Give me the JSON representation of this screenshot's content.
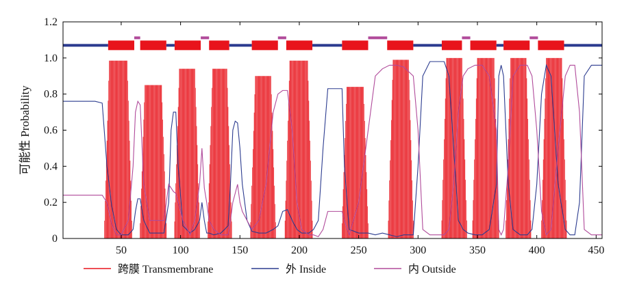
{
  "chart_data": {
    "type": "line",
    "title": "",
    "xlabel": "",
    "ylabel": "可能性 Probability",
    "xlim": [
      1,
      455
    ],
    "ylim": [
      0,
      1.2
    ],
    "x_ticks": [
      50,
      100,
      150,
      200,
      250,
      300,
      350,
      400,
      450
    ],
    "y_ticks": [
      0,
      0.2,
      0.4,
      0.6,
      0.8,
      1.0,
      1.2
    ],
    "grid": false,
    "legend_position": "bottom",
    "legend": [
      {
        "label": "跨膜 Transmembrane",
        "color": "#e8141c"
      },
      {
        "label": "外 Inside",
        "color": "#2b3b8f"
      },
      {
        "label": "内 Outside",
        "color": "#b04a9a"
      }
    ],
    "topology_bar_y": 1.07,
    "topology": [
      {
        "type": "inside",
        "start": 1,
        "end": 39
      },
      {
        "type": "tm",
        "start": 39,
        "end": 61
      },
      {
        "type": "outside",
        "start": 61,
        "end": 66
      },
      {
        "type": "tm",
        "start": 66,
        "end": 88
      },
      {
        "type": "inside",
        "start": 88,
        "end": 95
      },
      {
        "type": "tm",
        "start": 95,
        "end": 117
      },
      {
        "type": "outside",
        "start": 117,
        "end": 124
      },
      {
        "type": "tm",
        "start": 124,
        "end": 141
      },
      {
        "type": "inside",
        "start": 141,
        "end": 160
      },
      {
        "type": "tm",
        "start": 160,
        "end": 182
      },
      {
        "type": "outside",
        "start": 182,
        "end": 189
      },
      {
        "type": "tm",
        "start": 189,
        "end": 211
      },
      {
        "type": "inside",
        "start": 211,
        "end": 236
      },
      {
        "type": "tm",
        "start": 236,
        "end": 258
      },
      {
        "type": "outside",
        "start": 258,
        "end": 274
      },
      {
        "type": "tm",
        "start": 274,
        "end": 296
      },
      {
        "type": "inside",
        "start": 296,
        "end": 320
      },
      {
        "type": "tm",
        "start": 320,
        "end": 337
      },
      {
        "type": "outside",
        "start": 337,
        "end": 344
      },
      {
        "type": "tm",
        "start": 344,
        "end": 366
      },
      {
        "type": "inside",
        "start": 366,
        "end": 372
      },
      {
        "type": "tm",
        "start": 372,
        "end": 394
      },
      {
        "type": "outside",
        "start": 394,
        "end": 401
      },
      {
        "type": "tm",
        "start": 401,
        "end": 423
      },
      {
        "type": "inside",
        "start": 423,
        "end": 455
      }
    ],
    "tm_segments": [
      {
        "start": 36,
        "end": 59,
        "peak": 0.985
      },
      {
        "start": 66,
        "end": 88,
        "peak": 0.85
      },
      {
        "start": 95,
        "end": 116,
        "peak": 0.94
      },
      {
        "start": 123,
        "end": 143,
        "peak": 0.94
      },
      {
        "start": 159,
        "end": 180,
        "peak": 0.9
      },
      {
        "start": 188,
        "end": 211,
        "peak": 0.985
      },
      {
        "start": 236,
        "end": 258,
        "peak": 0.84
      },
      {
        "start": 275,
        "end": 296,
        "peak": 0.99
      },
      {
        "start": 320,
        "end": 341,
        "peak": 1.0
      },
      {
        "start": 346,
        "end": 368,
        "peak": 1.0
      },
      {
        "start": 374,
        "end": 395,
        "peak": 1.0
      },
      {
        "start": 404,
        "end": 425,
        "peak": 1.0
      }
    ],
    "series": [
      {
        "name": "外 Inside",
        "x": [
          1,
          28,
          34,
          38,
          42,
          46,
          50,
          56,
          60,
          62,
          64,
          66,
          69,
          74,
          80,
          86,
          90,
          92,
          94,
          96,
          98,
          102,
          108,
          112,
          116,
          118,
          120,
          122,
          124,
          128,
          134,
          140,
          142,
          144,
          146,
          148,
          150,
          152,
          156,
          160,
          166,
          172,
          178,
          182,
          186,
          190,
          194,
          198,
          202,
          208,
          212,
          216,
          220,
          224,
          232,
          236,
          238,
          242,
          250,
          258,
          264,
          270,
          276,
          282,
          288,
          296,
          300,
          304,
          310,
          316,
          322,
          326,
          330,
          334,
          338,
          342,
          348,
          354,
          360,
          366,
          368,
          370,
          372,
          376,
          380,
          386,
          392,
          396,
          400,
          404,
          408,
          412,
          418,
          424,
          428,
          432,
          436,
          440,
          446,
          455
        ],
        "y": [
          0.76,
          0.76,
          0.75,
          0.4,
          0.18,
          0.05,
          0.02,
          0.02,
          0.05,
          0.15,
          0.22,
          0.22,
          0.1,
          0.03,
          0.03,
          0.03,
          0.2,
          0.6,
          0.7,
          0.7,
          0.4,
          0.07,
          0.03,
          0.05,
          0.1,
          0.2,
          0.1,
          0.03,
          0.03,
          0.02,
          0.03,
          0.07,
          0.3,
          0.6,
          0.65,
          0.64,
          0.5,
          0.3,
          0.1,
          0.04,
          0.03,
          0.03,
          0.05,
          0.07,
          0.15,
          0.16,
          0.1,
          0.05,
          0.03,
          0.03,
          0.05,
          0.1,
          0.5,
          0.83,
          0.83,
          0.83,
          0.4,
          0.05,
          0.03,
          0.03,
          0.02,
          0.03,
          0.02,
          0.01,
          0.02,
          0.02,
          0.4,
          0.9,
          0.98,
          0.98,
          0.98,
          0.9,
          0.5,
          0.1,
          0.05,
          0.03,
          0.02,
          0.02,
          0.05,
          0.3,
          0.9,
          0.96,
          0.9,
          0.3,
          0.05,
          0.02,
          0.02,
          0.05,
          0.3,
          0.8,
          0.96,
          0.9,
          0.3,
          0.05,
          0.02,
          0.02,
          0.2,
          0.9,
          0.96,
          0.96
        ]
      },
      {
        "name": "内 Outside",
        "x": [
          1,
          28,
          34,
          38,
          42,
          46,
          50,
          56,
          60,
          62,
          64,
          66,
          69,
          74,
          80,
          86,
          90,
          92,
          94,
          96,
          98,
          102,
          108,
          112,
          116,
          118,
          120,
          122,
          124,
          128,
          134,
          140,
          142,
          144,
          146,
          148,
          150,
          152,
          156,
          160,
          166,
          172,
          178,
          182,
          186,
          190,
          194,
          198,
          202,
          208,
          212,
          216,
          220,
          224,
          232,
          236,
          238,
          242,
          250,
          258,
          264,
          270,
          276,
          282,
          288,
          296,
          300,
          304,
          310,
          316,
          322,
          326,
          330,
          334,
          338,
          342,
          348,
          354,
          360,
          366,
          368,
          370,
          372,
          376,
          380,
          386,
          392,
          396,
          400,
          404,
          408,
          412,
          418,
          424,
          428,
          432,
          436,
          440,
          446,
          455
        ],
        "y": [
          0.24,
          0.24,
          0.24,
          0.2,
          0.08,
          0.02,
          0.02,
          0.1,
          0.4,
          0.7,
          0.76,
          0.74,
          0.3,
          0.1,
          0.1,
          0.1,
          0.3,
          0.28,
          0.26,
          0.25,
          0.2,
          0.1,
          0.02,
          0.1,
          0.3,
          0.5,
          0.28,
          0.2,
          0.1,
          0.05,
          0.02,
          0.02,
          0.1,
          0.2,
          0.25,
          0.3,
          0.2,
          0.15,
          0.1,
          0.05,
          0.1,
          0.3,
          0.7,
          0.8,
          0.82,
          0.82,
          0.6,
          0.2,
          0.05,
          0.02,
          0.02,
          0.01,
          0.05,
          0.15,
          0.15,
          0.15,
          0.1,
          0.02,
          0.2,
          0.6,
          0.9,
          0.94,
          0.96,
          0.96,
          0.95,
          0.9,
          0.6,
          0.05,
          0.02,
          0.02,
          0.02,
          0.05,
          0.3,
          0.7,
          0.9,
          0.94,
          0.96,
          0.96,
          0.9,
          0.6,
          0.05,
          0.02,
          0.05,
          0.4,
          0.9,
          0.96,
          0.96,
          0.9,
          0.6,
          0.15,
          0.02,
          0.05,
          0.5,
          0.9,
          0.96,
          0.96,
          0.7,
          0.05,
          0.02,
          0.02
        ]
      }
    ]
  }
}
